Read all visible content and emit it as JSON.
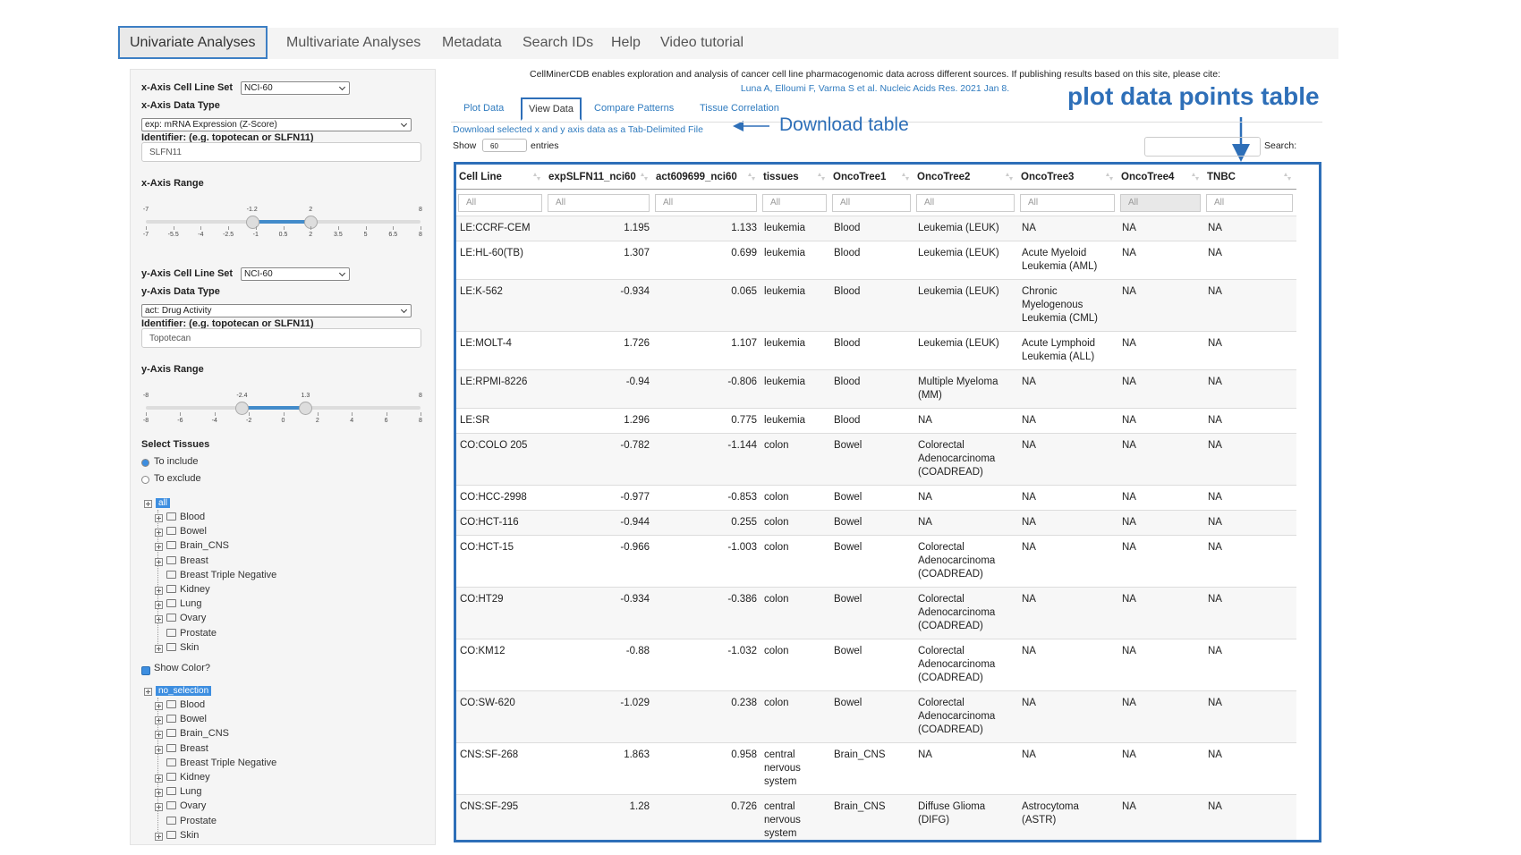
{
  "nav": {
    "tabs": [
      "Univariate Analyses",
      "Multivariate Analyses",
      "Metadata",
      "Search IDs",
      "Help",
      "Video tutorial"
    ]
  },
  "sidebar": {
    "x_axis": {
      "cell_line_set_label": "x-Axis Cell Line Set",
      "cell_line_set": "NCI-60",
      "data_type_label": "x-Axis Data Type",
      "data_type": "exp: mRNA Expression (Z-Score)",
      "identifier_label": "Identifier: (e.g. topotecan or SLFN11)",
      "identifier": "SLFN11",
      "range_label": "x-Axis Range",
      "range": {
        "min": -7,
        "max": 8,
        "low": -1.2,
        "high": 2,
        "ticks": [
          -7,
          -5.5,
          -4,
          -2.5,
          -1,
          0.5,
          2,
          3.5,
          5,
          6.5,
          8
        ]
      }
    },
    "y_axis": {
      "cell_line_set_label": "y-Axis Cell Line Set",
      "cell_line_set": "NCI-60",
      "data_type_label": "y-Axis Data Type",
      "data_type": "act: Drug Activity",
      "identifier_label": "Identifier: (e.g. topotecan or SLFN11)",
      "identifier": "Topotecan",
      "range_label": "y-Axis Range",
      "range": {
        "min": -8,
        "max": 8,
        "low": -2.4,
        "high": 1.3,
        "ticks": [
          -8,
          -6,
          -4,
          -2,
          0,
          2,
          4,
          6,
          8
        ]
      }
    },
    "tissues": {
      "label": "Select Tissues",
      "options": [
        "To include",
        "To exclude"
      ],
      "tree_root": "all",
      "items": [
        "Blood",
        "Bowel",
        "Brain_CNS",
        "Breast",
        "Breast Triple Negative",
        "Kidney",
        "Lung",
        "Ovary",
        "Prostate",
        "Skin"
      ]
    },
    "color": {
      "label": "Show Color?",
      "tree_root": "no_selection",
      "items": [
        "Blood",
        "Bowel",
        "Brain_CNS",
        "Breast",
        "Breast Triple Negative",
        "Kidney",
        "Lung",
        "Ovary",
        "Prostate",
        "Skin"
      ]
    }
  },
  "main": {
    "citation": "CellMinerCDB enables exploration and analysis of cancer cell line pharmacogenomic data across different sources. If publishing results based on this site, please cite:",
    "reference": "Luna A, Elloumi F, Varma S et al. Nucleic Acids Res. 2021 Jan 8.",
    "subtabs": [
      "Plot Data",
      "View Data",
      "Compare Patterns",
      "Tissue Correlation"
    ],
    "download_link": "Download selected x and y axis data as a Tab-Delimited File",
    "show_label": "Show",
    "entries_value": "60",
    "entries_label": "entries",
    "search_label": "Search:",
    "table": {
      "columns": [
        "Cell Line",
        "expSLFN11_nci60",
        "act609699_nci60",
        "tissues",
        "OncoTree1",
        "OncoTree2",
        "OncoTree3",
        "OncoTree4",
        "TNBC"
      ],
      "filter_placeholder": "All",
      "rows": [
        [
          "LE:CCRF-CEM",
          1.195,
          1.133,
          "leukemia",
          "Blood",
          "Leukemia (LEUK)",
          "NA",
          "NA",
          "NA"
        ],
        [
          "LE:HL-60(TB)",
          1.307,
          0.699,
          "leukemia",
          "Blood",
          "Leukemia (LEUK)",
          "Acute Myeloid Leukemia (AML)",
          "NA",
          "NA"
        ],
        [
          "LE:K-562",
          -0.934,
          0.065,
          "leukemia",
          "Blood",
          "Leukemia (LEUK)",
          "Chronic Myelogenous Leukemia (CML)",
          "NA",
          "NA"
        ],
        [
          "LE:MOLT-4",
          1.726,
          1.107,
          "leukemia",
          "Blood",
          "Leukemia (LEUK)",
          "Acute Lymphoid Leukemia (ALL)",
          "NA",
          "NA"
        ],
        [
          "LE:RPMI-8226",
          -0.94,
          -0.806,
          "leukemia",
          "Blood",
          "Multiple Myeloma (MM)",
          "NA",
          "NA",
          "NA"
        ],
        [
          "LE:SR",
          1.296,
          0.775,
          "leukemia",
          "Blood",
          "NA",
          "NA",
          "NA",
          "NA"
        ],
        [
          "CO:COLO 205",
          -0.782,
          -1.144,
          "colon",
          "Bowel",
          "Colorectal Adenocarcinoma (COADREAD)",
          "NA",
          "NA",
          "NA"
        ],
        [
          "CO:HCC-2998",
          -0.977,
          -0.853,
          "colon",
          "Bowel",
          "NA",
          "NA",
          "NA",
          "NA"
        ],
        [
          "CO:HCT-116",
          -0.944,
          0.255,
          "colon",
          "Bowel",
          "NA",
          "NA",
          "NA",
          "NA"
        ],
        [
          "CO:HCT-15",
          -0.966,
          -1.003,
          "colon",
          "Bowel",
          "Colorectal Adenocarcinoma (COADREAD)",
          "NA",
          "NA",
          "NA"
        ],
        [
          "CO:HT29",
          -0.934,
          -0.386,
          "colon",
          "Bowel",
          "Colorectal Adenocarcinoma (COADREAD)",
          "NA",
          "NA",
          "NA"
        ],
        [
          "CO:KM12",
          -0.88,
          -1.032,
          "colon",
          "Bowel",
          "Colorectal Adenocarcinoma (COADREAD)",
          "NA",
          "NA",
          "NA"
        ],
        [
          "CO:SW-620",
          -1.029,
          0.238,
          "colon",
          "Bowel",
          "Colorectal Adenocarcinoma (COADREAD)",
          "NA",
          "NA",
          "NA"
        ],
        [
          "CNS:SF-268",
          1.863,
          0.958,
          "central nervous system",
          "Brain_CNS",
          "NA",
          "NA",
          "NA",
          "NA"
        ],
        [
          "CNS:SF-295",
          1.28,
          0.726,
          "central nervous system",
          "Brain_CNS",
          "Diffuse Glioma (DIFG)",
          "Astrocytoma (ASTR)",
          "NA",
          "NA"
        ]
      ]
    }
  },
  "annotations": {
    "download": "Download table",
    "table": "plot data points table"
  }
}
